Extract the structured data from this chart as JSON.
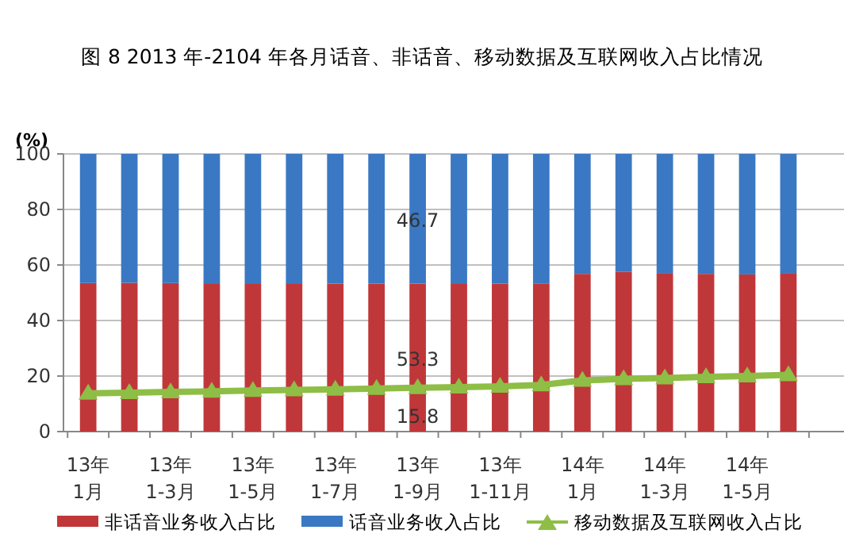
{
  "chart_data": {
    "type": "bar",
    "stacked": true,
    "title": "图 8 2013 年-2104 年各月话音、非话音、移动数据及互联网收入占比情况",
    "ylabel": "(%)",
    "categories": [
      "13年\n1月",
      null,
      "13年\n1-3月",
      null,
      "13年\n1-5月",
      null,
      "13年\n1-7月",
      null,
      "13年\n1-9月",
      null,
      "13年\n1-11月",
      null,
      "14年\n1月",
      null,
      "14年\n1-3月",
      null,
      "14年\n1-5月",
      null
    ],
    "series": [
      {
        "name": "非话音业务收入占比",
        "color": "#c0373a",
        "values": [
          53.5,
          53.6,
          53.5,
          53.4,
          53.4,
          53.4,
          53.3,
          53.3,
          53.3,
          53.4,
          53.3,
          53.2,
          56.8,
          57.5,
          57.1,
          56.8,
          56.6,
          57.1
        ],
        "value_labels": [
          null,
          null,
          null,
          null,
          null,
          null,
          null,
          null,
          "53.3",
          null,
          null,
          null,
          null,
          null,
          null,
          null,
          null,
          null
        ]
      },
      {
        "name": "话音业务收入占比",
        "color": "#3a78c3",
        "values": [
          46.5,
          46.4,
          46.5,
          46.6,
          46.6,
          46.6,
          46.7,
          46.7,
          46.7,
          46.6,
          46.7,
          46.8,
          43.2,
          42.5,
          42.9,
          43.2,
          43.4,
          42.9
        ],
        "value_labels": [
          null,
          null,
          null,
          null,
          null,
          null,
          null,
          null,
          "46.7",
          null,
          null,
          null,
          null,
          null,
          null,
          null,
          null,
          null
        ]
      },
      {
        "name": "移动数据及互联网收入占比",
        "type": "line",
        "color": "#8ebe45",
        "values": [
          13.8,
          14.0,
          14.3,
          14.5,
          14.8,
          15.0,
          15.2,
          15.5,
          15.8,
          16.0,
          16.3,
          16.8,
          18.4,
          19.0,
          19.3,
          19.7,
          20.0,
          20.4
        ],
        "value_labels": [
          null,
          null,
          null,
          null,
          null,
          null,
          null,
          null,
          "15.8",
          null,
          null,
          null,
          null,
          null,
          null,
          null,
          null,
          null
        ]
      }
    ],
    "ylim": [
      0,
      100
    ],
    "yticks": [
      0,
      20,
      40,
      60,
      80,
      100
    ],
    "grid": "y",
    "legend": "bottom",
    "marker": "triangle"
  }
}
